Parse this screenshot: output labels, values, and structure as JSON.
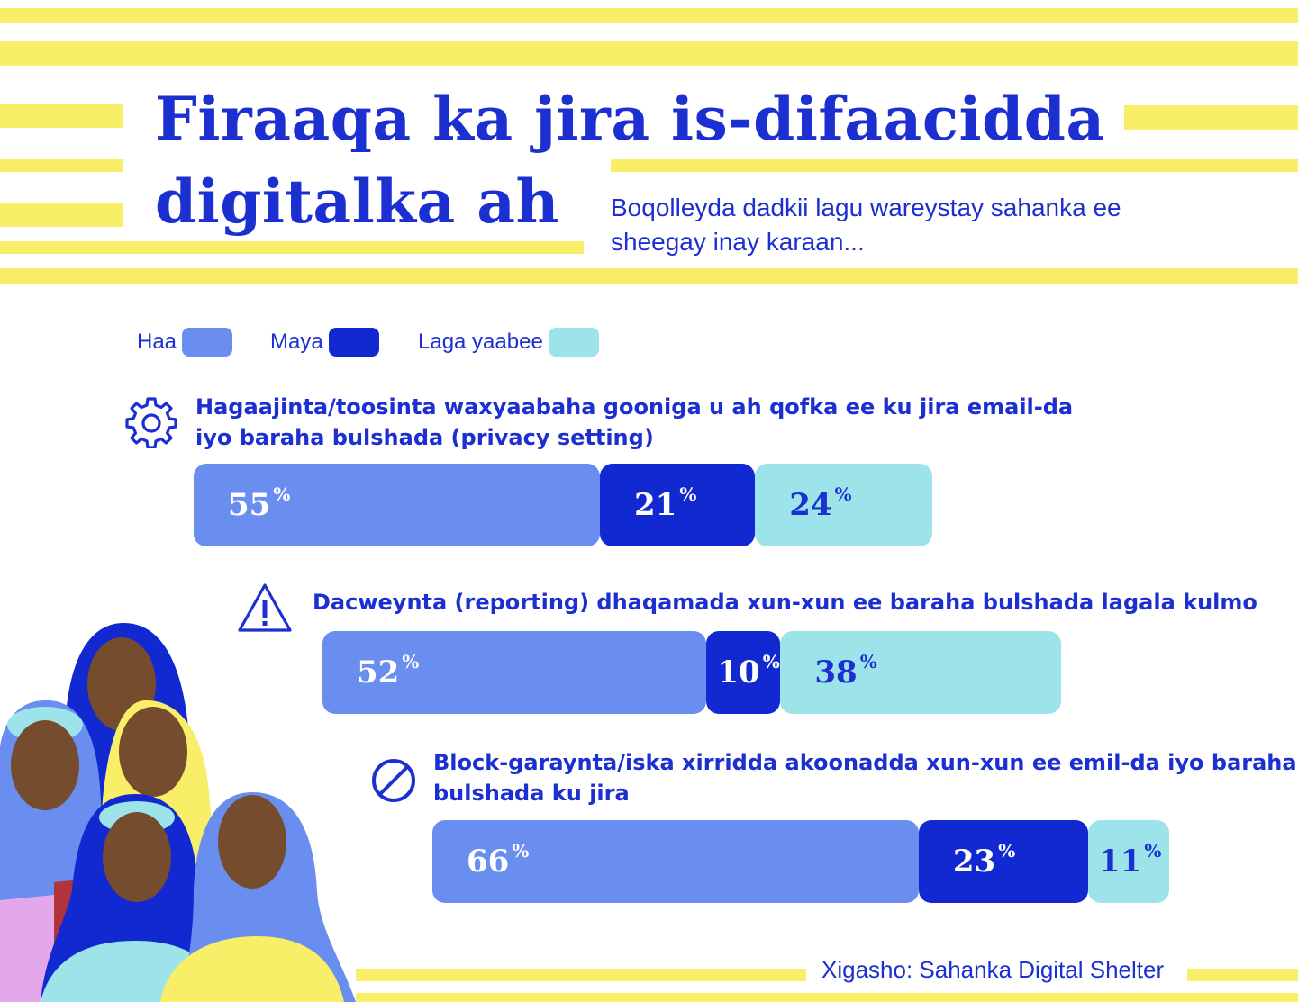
{
  "header": {
    "title_line1": "Firaaqa ka jira is-difaacidda",
    "title_line2": "digitalka ah",
    "subtitle_line1": "Boqolleyda dadkii lagu wareystay sahanka ee",
    "subtitle_line2": "sheegay inay karaan..."
  },
  "colors": {
    "haa": "#6a8eef",
    "maya": "#1229d1",
    "laga_yaabee": "#9de4ea",
    "accent_text": "#1c2fd0",
    "stripe": "#f8ee68"
  },
  "chart_data": {
    "type": "bar",
    "orientation": "horizontal-stacked",
    "legend": [
      "Haa",
      "Maya",
      "Laga yaabee"
    ],
    "legend_placement": "top-left",
    "categories": [
      "Hagaajinta/toosinta waxyaabaha gooniga u ah qofka ee ku jira email-da iyo baraha bulshada (privacy setting)",
      "Dacweynta (reporting) dhaqamada xun-xun ee baraha bulshada lagala kulmo",
      "Block-garaynta/iska xirridda akoonadda xun-xun ee emil-da iyo baraha bulshada ku jira"
    ],
    "category_lines": [
      [
        "Hagaajinta/toosinta waxyaabaha gooniga u ah qofka ee ku jira email-da",
        "iyo baraha bulshada (privacy setting)"
      ],
      [
        "Dacweynta (reporting) dhaqamada xun-xun ee baraha bulshada lagala kulmo"
      ],
      [
        "Block-garaynta/iska xirridda akoonadda xun-xun ee emil-da iyo baraha",
        "bulshada ku jira"
      ]
    ],
    "category_icons": [
      "gear-icon",
      "warning-icon",
      "block-icon"
    ],
    "series": [
      {
        "name": "Haa",
        "values": [
          55,
          52,
          66
        ]
      },
      {
        "name": "Maya",
        "values": [
          21,
          10,
          23
        ]
      },
      {
        "name": "Laga yaabee",
        "values": [
          24,
          38,
          11
        ]
      }
    ],
    "value_suffix": "%",
    "grid": false
  },
  "source": "Xigasho: Sahanka Digital Shelter"
}
